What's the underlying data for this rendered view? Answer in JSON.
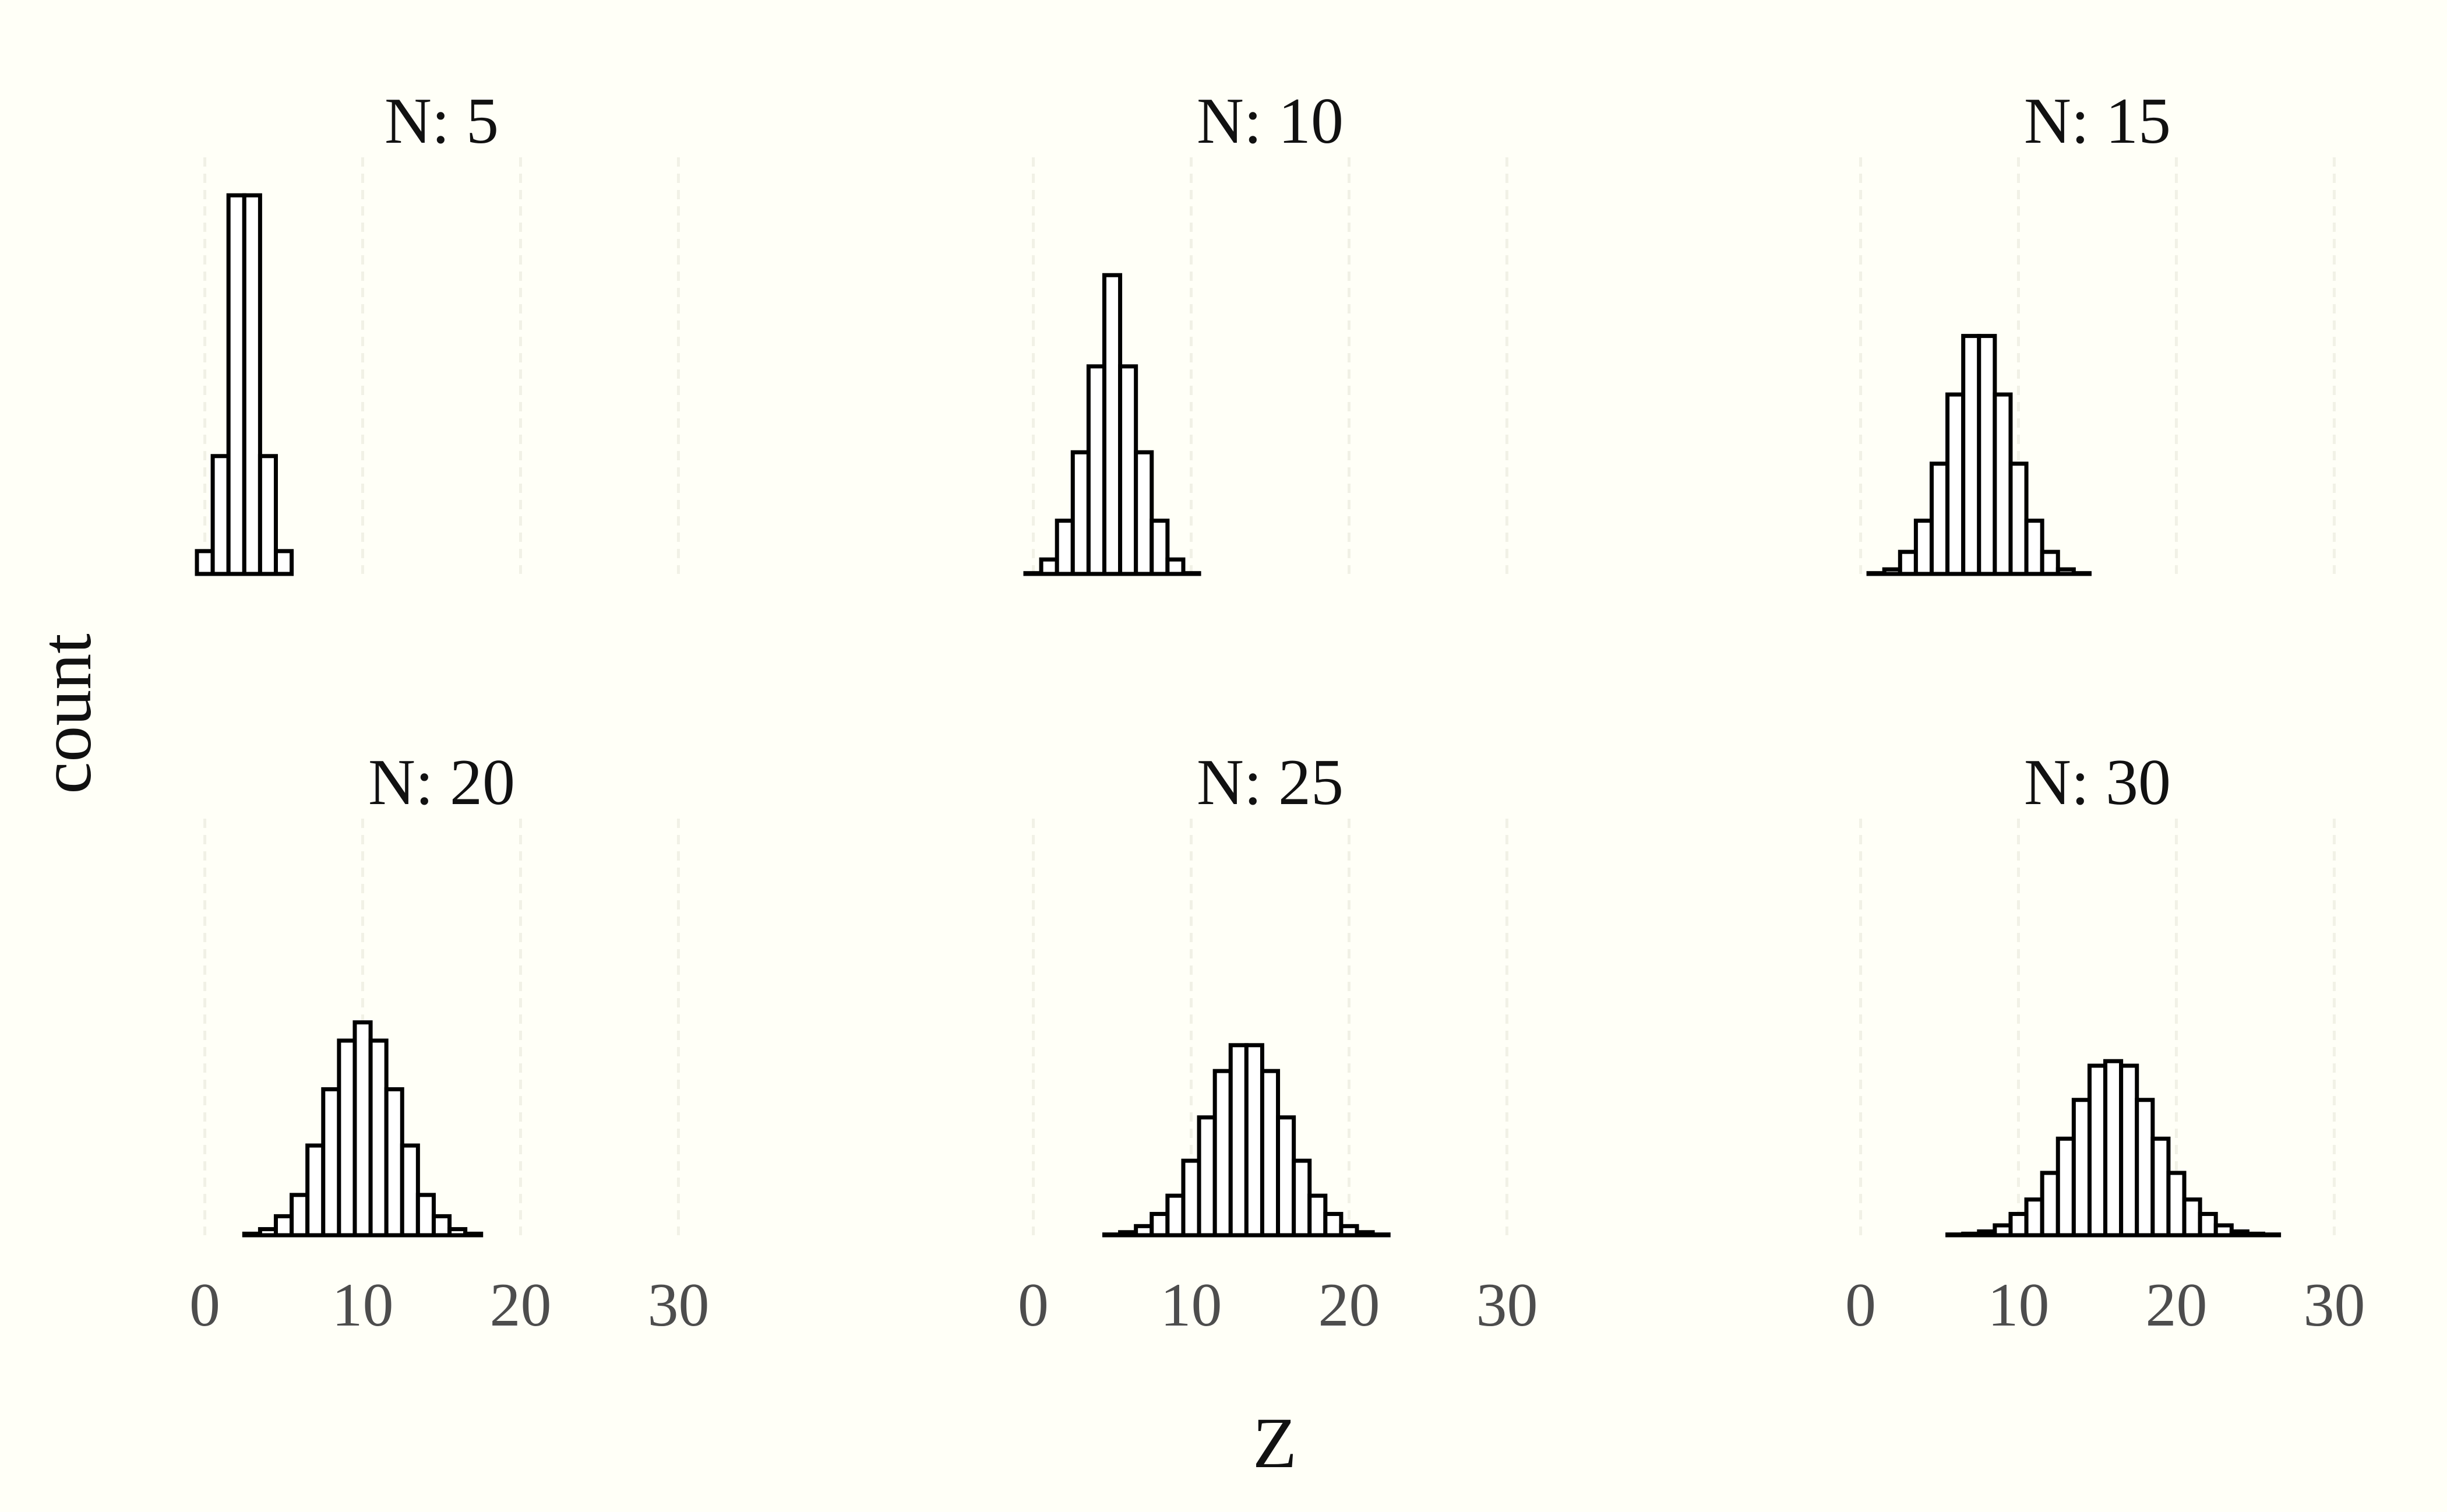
{
  "chart_data": {
    "type": "bar",
    "xlabel": "Z",
    "ylabel": "count",
    "x_ticks": [
      0,
      10,
      20,
      30
    ],
    "xlim": [
      -0.5,
      30.5
    ],
    "ylim": [
      0,
      5020
    ],
    "grid": false,
    "background": "#fffff7",
    "bar_fill": "#ffffff",
    "bar_stroke": "#000000",
    "panels": [
      {
        "title": "N: 5",
        "N": 5,
        "x": [
          0,
          1,
          2,
          3,
          4,
          5
        ],
        "counts": [
          300,
          1550,
          4980,
          4980,
          1550,
          300
        ]
      },
      {
        "title": "N: 10",
        "N": 10,
        "x": [
          0,
          1,
          2,
          3,
          4,
          5,
          6,
          7,
          8,
          9,
          10
        ],
        "counts": [
          10,
          190,
          700,
          1600,
          2730,
          3930,
          2730,
          1600,
          700,
          190,
          10
        ]
      },
      {
        "title": "N: 15",
        "N": 15,
        "x": [
          0,
          1,
          2,
          3,
          4,
          5,
          6,
          7,
          8,
          9,
          10,
          11,
          12,
          13,
          14,
          15
        ],
        "counts": [
          0,
          10,
          60,
          290,
          700,
          1450,
          2360,
          3130,
          3130,
          2360,
          1450,
          700,
          290,
          60,
          10,
          0
        ]
      },
      {
        "title": "N: 20",
        "N": 20,
        "x": [
          0,
          1,
          2,
          3,
          4,
          5,
          6,
          7,
          8,
          9,
          10,
          11,
          12,
          13,
          14,
          15,
          16,
          17,
          18,
          19,
          20
        ],
        "counts": [
          0,
          0,
          0,
          20,
          80,
          250,
          530,
          1180,
          1920,
          2560,
          2800,
          2560,
          1920,
          1180,
          530,
          250,
          80,
          20,
          0,
          0,
          0
        ]
      },
      {
        "title": "N: 25",
        "N": 25,
        "x": [
          0,
          1,
          2,
          3,
          4,
          5,
          6,
          7,
          8,
          9,
          10,
          11,
          12,
          13,
          14,
          15,
          16,
          17,
          18,
          19,
          20,
          21,
          22,
          23,
          24,
          25
        ],
        "counts": [
          0,
          0,
          0,
          0,
          0,
          10,
          40,
          120,
          280,
          520,
          980,
          1550,
          2160,
          2500,
          2500,
          2160,
          1550,
          980,
          520,
          280,
          120,
          40,
          10,
          0,
          0,
          0
        ]
      },
      {
        "title": "N: 30",
        "N": 30,
        "x": [
          0,
          1,
          2,
          3,
          4,
          5,
          6,
          7,
          8,
          9,
          10,
          11,
          12,
          13,
          14,
          15,
          16,
          17,
          18,
          19,
          20,
          21,
          22,
          23,
          24,
          25,
          26,
          27,
          28,
          29,
          30
        ],
        "counts": [
          0,
          0,
          0,
          0,
          0,
          0,
          10,
          20,
          50,
          130,
          280,
          470,
          820,
          1270,
          1780,
          2230,
          2290,
          2230,
          1780,
          1270,
          820,
          470,
          280,
          130,
          50,
          20,
          10,
          0,
          0,
          0,
          0
        ]
      }
    ]
  }
}
